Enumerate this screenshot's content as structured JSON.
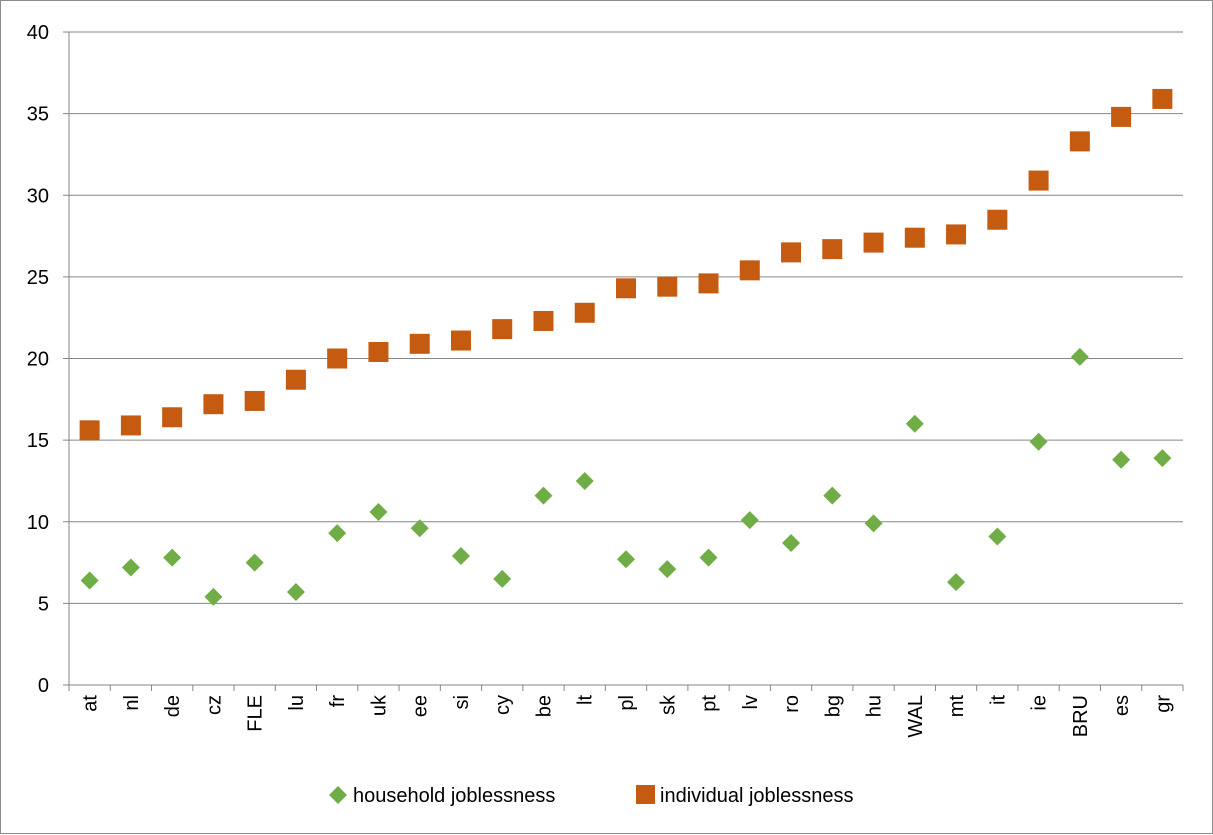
{
  "chart_data": {
    "type": "scatter",
    "categories": [
      "at",
      "nl",
      "de",
      "cz",
      "FLE",
      "lu",
      "fr",
      "uk",
      "ee",
      "si",
      "cy",
      "be",
      "lt",
      "pl",
      "sk",
      "pt",
      "lv",
      "ro",
      "bg",
      "hu",
      "WAL",
      "mt",
      "it",
      "ie",
      "BRU",
      "es",
      "gr"
    ],
    "series": [
      {
        "name": "household joblessness",
        "marker": "diamond",
        "color": "#70ad47",
        "values": [
          6.4,
          7.2,
          7.8,
          5.4,
          7.5,
          5.7,
          9.3,
          10.6,
          9.6,
          7.9,
          6.5,
          11.6,
          12.5,
          7.7,
          7.1,
          7.8,
          10.1,
          8.7,
          11.6,
          9.9,
          16.0,
          6.3,
          9.1,
          14.9,
          20.1,
          13.8,
          13.9
        ]
      },
      {
        "name": "individual joblessness",
        "marker": "square",
        "color": "#c55a11",
        "values": [
          15.6,
          15.9,
          16.4,
          17.2,
          17.4,
          18.7,
          20.0,
          20.4,
          20.9,
          21.1,
          21.8,
          22.3,
          22.8,
          24.3,
          24.4,
          24.6,
          25.4,
          26.5,
          26.7,
          27.1,
          27.4,
          27.6,
          28.5,
          30.9,
          33.3,
          34.8,
          35.9
        ]
      }
    ],
    "ylim": [
      0,
      40
    ],
    "yticks": [
      0,
      5,
      10,
      15,
      20,
      25,
      30,
      35,
      40
    ],
    "grid": true,
    "legend_position": "bottom",
    "title": "",
    "xlabel": "",
    "ylabel": ""
  }
}
